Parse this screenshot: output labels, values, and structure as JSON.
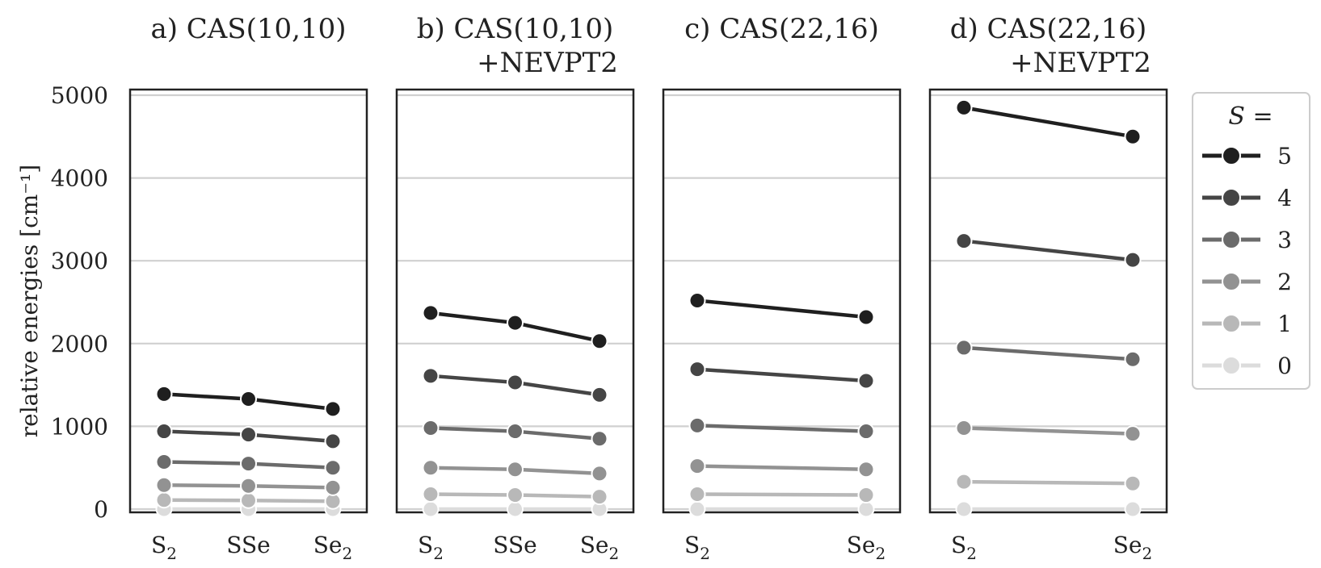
{
  "chart_data": {
    "type": "line",
    "ylabel": "relative energies [cm⁻¹]",
    "ylim": [
      0,
      5000
    ],
    "yticks": [
      0,
      1000,
      2000,
      3000,
      4000,
      5000
    ],
    "grid": true,
    "legend": {
      "title": "S =",
      "placement": "right",
      "entries": [
        {
          "label": "5",
          "color": "#1f1f1f"
        },
        {
          "label": "4",
          "color": "#454545"
        },
        {
          "label": "3",
          "color": "#6b6b6b"
        },
        {
          "label": "2",
          "color": "#929292"
        },
        {
          "label": "1",
          "color": "#b8b8b8"
        },
        {
          "label": "0",
          "color": "#dcdcdc"
        }
      ]
    },
    "panels": [
      {
        "title": "a) CAS(10,10)",
        "title_line2": "",
        "categories": [
          "S2",
          "SSe",
          "Se2"
        ],
        "category_labels": [
          {
            "base": "S",
            "sub": "2"
          },
          {
            "base": "SSe",
            "sub": ""
          },
          {
            "base": "Se",
            "sub": "2"
          }
        ],
        "series": [
          {
            "name": "5",
            "values": [
              1390,
              1330,
              1210
            ]
          },
          {
            "name": "4",
            "values": [
              940,
              900,
              820
            ]
          },
          {
            "name": "3",
            "values": [
              570,
              550,
              500
            ]
          },
          {
            "name": "2",
            "values": [
              290,
              280,
              260
            ]
          },
          {
            "name": "1",
            "values": [
              110,
              105,
              95
            ]
          },
          {
            "name": "0",
            "values": [
              0,
              0,
              0
            ]
          }
        ]
      },
      {
        "title": "b) CAS(10,10)",
        "title_line2": "+NEVPT2",
        "categories": [
          "S2",
          "SSe",
          "Se2"
        ],
        "category_labels": [
          {
            "base": "S",
            "sub": "2"
          },
          {
            "base": "SSe",
            "sub": ""
          },
          {
            "base": "Se",
            "sub": "2"
          }
        ],
        "series": [
          {
            "name": "5",
            "values": [
              2370,
              2250,
              2030
            ]
          },
          {
            "name": "4",
            "values": [
              1610,
              1530,
              1380
            ]
          },
          {
            "name": "3",
            "values": [
              980,
              940,
              850
            ]
          },
          {
            "name": "2",
            "values": [
              500,
              480,
              430
            ]
          },
          {
            "name": "1",
            "values": [
              180,
              170,
              150
            ]
          },
          {
            "name": "0",
            "values": [
              0,
              0,
              0
            ]
          }
        ]
      },
      {
        "title": "c) CAS(22,16)",
        "title_line2": "",
        "categories": [
          "S2",
          "Se2"
        ],
        "category_labels": [
          {
            "base": "S",
            "sub": "2"
          },
          {
            "base": "Se",
            "sub": "2"
          }
        ],
        "series": [
          {
            "name": "5",
            "values": [
              2520,
              2320
            ]
          },
          {
            "name": "4",
            "values": [
              1690,
              1550
            ]
          },
          {
            "name": "3",
            "values": [
              1010,
              940
            ]
          },
          {
            "name": "2",
            "values": [
              520,
              480
            ]
          },
          {
            "name": "1",
            "values": [
              180,
              170
            ]
          },
          {
            "name": "0",
            "values": [
              0,
              0
            ]
          }
        ]
      },
      {
        "title": "d) CAS(22,16)",
        "title_line2": "+NEVPT2",
        "categories": [
          "S2",
          "Se2"
        ],
        "category_labels": [
          {
            "base": "S",
            "sub": "2"
          },
          {
            "base": "Se",
            "sub": "2"
          }
        ],
        "series": [
          {
            "name": "5",
            "values": [
              4850,
              4500
            ]
          },
          {
            "name": "4",
            "values": [
              3240,
              3010
            ]
          },
          {
            "name": "3",
            "values": [
              1950,
              1810
            ]
          },
          {
            "name": "2",
            "values": [
              980,
              910
            ]
          },
          {
            "name": "1",
            "values": [
              330,
              310
            ]
          },
          {
            "name": "0",
            "values": [
              0,
              0
            ]
          }
        ]
      }
    ]
  }
}
